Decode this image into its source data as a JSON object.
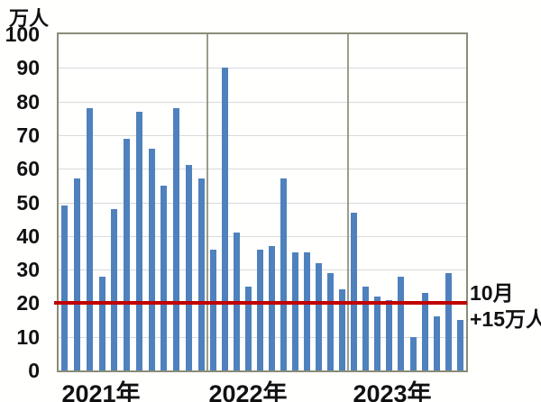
{
  "chart_data": {
    "type": "bar",
    "unit_label": "万人",
    "ylim": [
      0,
      100
    ],
    "yticks": [
      0,
      10,
      20,
      30,
      40,
      50,
      60,
      70,
      80,
      90,
      100
    ],
    "grid": true,
    "categories_note": "monthly bars grouped by year",
    "groups": [
      {
        "label": "2021年",
        "values": [
          49,
          57,
          78,
          28,
          48,
          69,
          77,
          66,
          55,
          78,
          61,
          57
        ]
      },
      {
        "label": "2022年",
        "values": [
          36,
          90,
          41,
          25,
          36,
          37,
          57,
          35,
          35,
          32,
          29,
          24
        ]
      },
      {
        "label": "2023年",
        "values": [
          47,
          25,
          22,
          21,
          28,
          10,
          23,
          16,
          29,
          15
        ]
      }
    ],
    "reference_line": {
      "value": 20
    },
    "annotation": {
      "line1": "10月",
      "line2": "+15万人"
    },
    "colors": {
      "bar": "#4F81BD",
      "reference_line": "#C00000",
      "gridline": "#D9D9D9",
      "plot_border": "#8B8C77",
      "text": "#111111"
    }
  }
}
